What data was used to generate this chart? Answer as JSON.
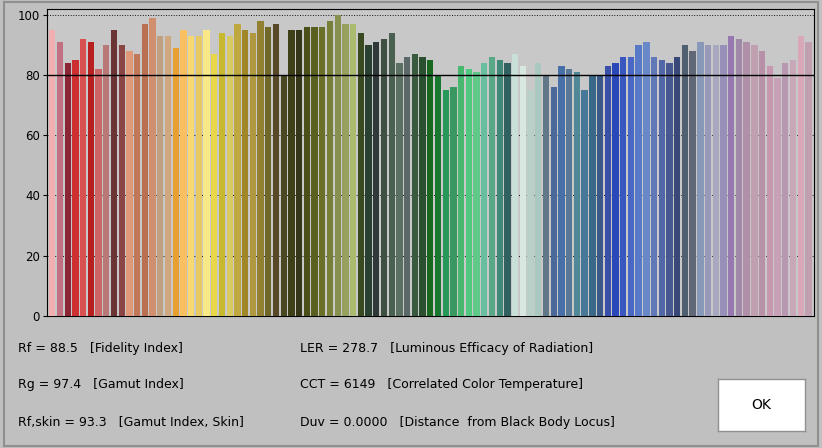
{
  "Rf": 88.5,
  "Rg": 97.4,
  "Rf_skin": 93.3,
  "LER": 278.7,
  "CCT": 6149,
  "Duv": "0.0000",
  "bg_color": "#c0c0c0",
  "plot_bg": "#c8c8c8",
  "ylim": [
    0,
    102
  ],
  "yticks": [
    0,
    20,
    40,
    60,
    80,
    100
  ],
  "bar_colors": [
    "#F0AFAF",
    "#C07080",
    "#8B2535",
    "#CC3030",
    "#D85050",
    "#B82020",
    "#CC6565",
    "#B87878",
    "#6B3535",
    "#8B4545",
    "#E09878",
    "#C07858",
    "#B87050",
    "#D09070",
    "#C0A080",
    "#D0A880",
    "#E8A030",
    "#F8C060",
    "#F8D870",
    "#E8C860",
    "#F8E888",
    "#E8D848",
    "#C8B830",
    "#D8CA60",
    "#C0A840",
    "#A08828",
    "#B09840",
    "#908030",
    "#706828",
    "#584828",
    "#4A4820",
    "#404018",
    "#363618",
    "#4A5018",
    "#5A6020",
    "#6A7028",
    "#788038",
    "#889050",
    "#98A060",
    "#AABB70",
    "#3A4A20",
    "#2A4030",
    "#303838",
    "#405040",
    "#4A6050",
    "#5A7060",
    "#5A6868",
    "#3A5A40",
    "#2A5030",
    "#186820",
    "#187830",
    "#289858",
    "#389860",
    "#48B870",
    "#50C880",
    "#60C888",
    "#6ABEA0",
    "#58A888",
    "#408878",
    "#306060",
    "#1A4040",
    "#3A5040",
    "#485860",
    "#506868",
    "#4A7888",
    "#4A6898",
    "#4A70A8",
    "#587898",
    "#508898",
    "#487898",
    "#3A6888",
    "#3A5888",
    "#3A50A8",
    "#2A48B8",
    "#3858C0",
    "#4868C8",
    "#5878C8",
    "#6888C8",
    "#6078B8",
    "#5068A8",
    "#485890",
    "#384878",
    "#506070",
    "#606878",
    "#708890",
    "#808898",
    "#8888A8",
    "#8078A8",
    "#8878A0",
    "#908898",
    "#A08898",
    "#B098A0",
    "#B890A8",
    "#C898B0",
    "#C8A0B8",
    "#B898B0",
    "#C8A8B8",
    "#D8A8B8",
    "#C0A0B0"
  ],
  "bar_heights": [
    95,
    91,
    84,
    85,
    92,
    91,
    82,
    90,
    95,
    90,
    88,
    87,
    97,
    99,
    93,
    93,
    89,
    95,
    93,
    93,
    95,
    87,
    94,
    93,
    97,
    95,
    94,
    98,
    96,
    97,
    80,
    95,
    95,
    96,
    96,
    96,
    98,
    100,
    97,
    97,
    94,
    90,
    91,
    92,
    94,
    84,
    86,
    87,
    86,
    85,
    80,
    75,
    76,
    83,
    82,
    81,
    84,
    86,
    85,
    84,
    87,
    83,
    75,
    84,
    80,
    76,
    83,
    82,
    81,
    75,
    80,
    80,
    83,
    84,
    86,
    86,
    90,
    91,
    86,
    85,
    84,
    86,
    90,
    88,
    91,
    90,
    90,
    90,
    93,
    92,
    91,
    90,
    88,
    83,
    79,
    84,
    85,
    93,
    91
  ]
}
